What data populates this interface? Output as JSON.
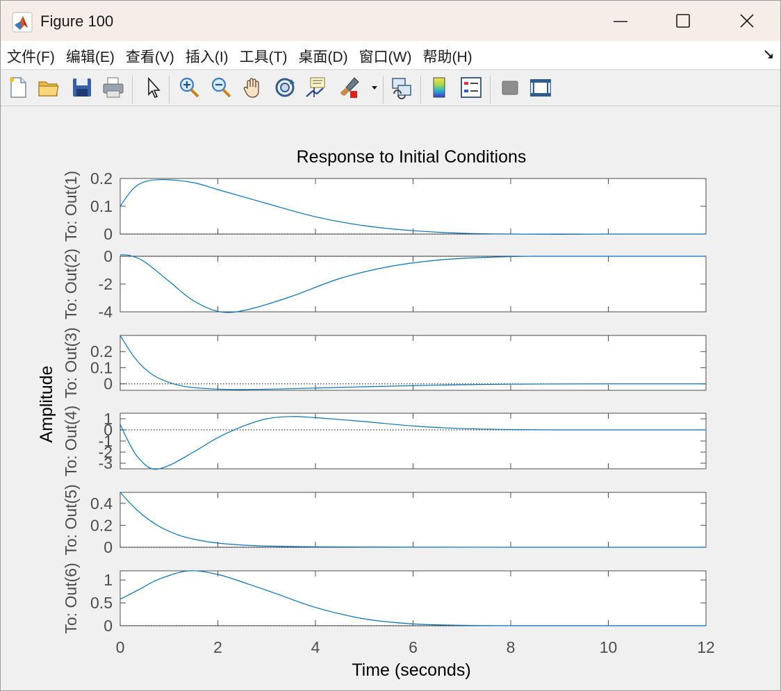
{
  "window": {
    "title": "Figure 100"
  },
  "menu": [
    "文件(F)",
    "编辑(E)",
    "查看(V)",
    "插入(I)",
    "工具(T)",
    "桌面(D)",
    "窗口(W)",
    "帮助(H)"
  ],
  "toolbar": {
    "icons": [
      "new-figure-icon",
      "open-file-icon",
      "save-icon",
      "print-icon",
      "select-arrow-icon",
      "zoom-in-icon",
      "zoom-out-icon",
      "pan-icon",
      "rotate-3d-icon",
      "data-cursor-icon",
      "brush-icon",
      "link-plot-icon",
      "colorbar-icon",
      "legend-icon",
      "hide-plot-tools-icon",
      "show-plot-tools-icon"
    ]
  },
  "colors": {
    "line": "#0072bd",
    "axes": "#4d4d4d",
    "tick_label": "#4d4d4d",
    "figure_bg": "#f0f0f0"
  },
  "chart_data": {
    "type": "line",
    "title": "Response to Initial Conditions",
    "xlabel": "Time (seconds)",
    "ylabel": "Amplitude",
    "xlim": [
      0,
      12
    ],
    "xticks": [
      0,
      2,
      4,
      6,
      8,
      10,
      12
    ],
    "grid": false,
    "zero_reference_line": "dotted",
    "subplots": [
      {
        "ylabel": "To: Out(1)",
        "ylim": [
          0,
          0.2
        ],
        "yticks": [
          0,
          0.1,
          0.2
        ],
        "ytick_labels": [
          "0",
          "0.1",
          "0.2"
        ],
        "x": [
          0,
          0.25,
          0.5,
          0.9,
          1.5,
          2,
          3,
          4,
          5,
          6,
          7,
          8,
          9,
          10,
          12
        ],
        "y": [
          0.1,
          0.16,
          0.188,
          0.196,
          0.185,
          0.16,
          0.11,
          0.062,
          0.03,
          0.012,
          0.003,
          0.0,
          -0.001,
          0.0,
          0.0
        ]
      },
      {
        "ylabel": "To: Out(2)",
        "ylim": [
          -4,
          0
        ],
        "yticks": [
          -4,
          -2,
          0
        ],
        "ytick_labels": [
          "-4",
          "-2",
          "0"
        ],
        "x": [
          0,
          0.2,
          0.5,
          1,
          1.5,
          2.05,
          2.6,
          3.5,
          4.5,
          5.5,
          6.5,
          7.5,
          8.5,
          10,
          12
        ],
        "y": [
          0.1,
          0.05,
          -0.4,
          -1.8,
          -3.2,
          -4.0,
          -3.85,
          -2.9,
          -1.6,
          -0.75,
          -0.28,
          -0.08,
          0.0,
          0.0,
          0.0
        ]
      },
      {
        "ylabel": "To: Out(3)",
        "ylim": [
          -0.04,
          0.3
        ],
        "yticks": [
          0,
          0.1,
          0.2
        ],
        "ytick_labels": [
          "0",
          "0.1",
          "0.2"
        ],
        "x": [
          0,
          0.3,
          0.6,
          0.9,
          1.3,
          1.8,
          2.5,
          3.5,
          5,
          6.5,
          8,
          10,
          12
        ],
        "y": [
          0.3,
          0.16,
          0.07,
          0.02,
          -0.015,
          -0.03,
          -0.035,
          -0.03,
          -0.018,
          -0.008,
          -0.002,
          0.0,
          0.0
        ]
      },
      {
        "ylabel": "To: Out(4)",
        "ylim": [
          -3.5,
          1.5
        ],
        "yticks": [
          -3,
          -2,
          -1,
          0,
          1
        ],
        "ytick_labels": [
          "-3",
          "-2",
          "-1",
          "0",
          "1"
        ],
        "x": [
          0,
          0.15,
          0.35,
          0.65,
          1,
          1.5,
          2,
          2.5,
          3,
          3.5,
          4,
          5,
          6,
          7,
          8,
          9,
          10,
          12
        ],
        "y": [
          0.5,
          -0.9,
          -2.4,
          -3.5,
          -3.2,
          -2.0,
          -0.7,
          0.3,
          1.0,
          1.2,
          1.1,
          0.75,
          0.35,
          0.12,
          0.03,
          0.0,
          0.0,
          0.0
        ]
      },
      {
        "ylabel": "To: Out(5)",
        "ylim": [
          0,
          0.5
        ],
        "yticks": [
          0,
          0.2,
          0.4
        ],
        "ytick_labels": [
          "0",
          "0.2",
          "0.4"
        ],
        "x": [
          0,
          0.25,
          0.5,
          0.8,
          1.2,
          1.6,
          2,
          2.5,
          3,
          4,
          5,
          6,
          8,
          10,
          12
        ],
        "y": [
          0.5,
          0.38,
          0.28,
          0.19,
          0.11,
          0.065,
          0.038,
          0.02,
          0.011,
          0.004,
          0.002,
          0.001,
          0.0,
          0.0,
          0.0
        ]
      },
      {
        "ylabel": "To: Out(6)",
        "ylim": [
          0,
          1.2
        ],
        "yticks": [
          0,
          0.5,
          1
        ],
        "ytick_labels": [
          "0",
          "0.5",
          "1"
        ],
        "x": [
          0,
          0.4,
          0.8,
          1.4,
          2,
          2.6,
          3.2,
          4,
          5,
          6,
          7,
          8,
          10,
          12
        ],
        "y": [
          0.58,
          0.8,
          1.02,
          1.2,
          1.12,
          0.92,
          0.7,
          0.4,
          0.15,
          0.04,
          0.01,
          0.0,
          0.0,
          0.0
        ]
      }
    ]
  }
}
